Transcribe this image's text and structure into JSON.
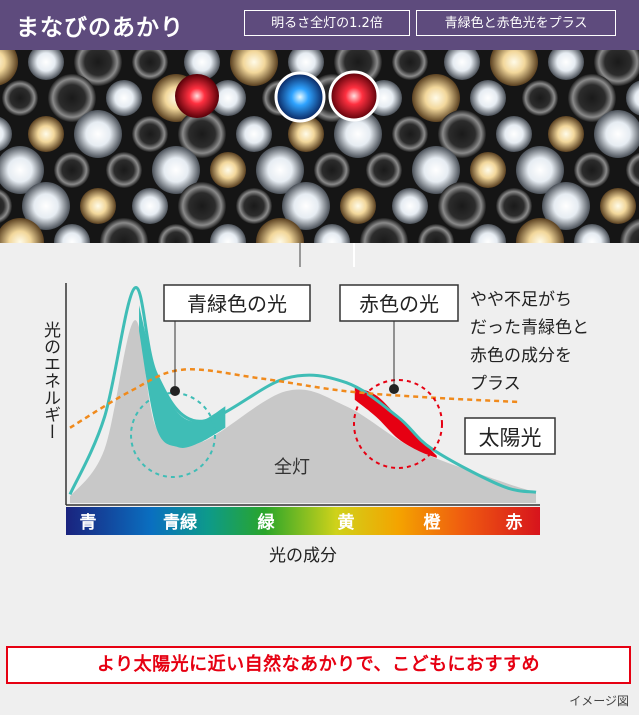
{
  "header": {
    "title": "まなびのあかり",
    "badges": [
      "明るさ全灯の1.2倍",
      "青緑色と赤色光をプラス"
    ]
  },
  "callouts": {
    "blue_green": "青緑色の光",
    "red": "赤色の光",
    "note_lines": [
      "やや不足がち",
      "だった青緑色と",
      "赤色の成分を",
      "プラス"
    ],
    "sunlight": "太陽光",
    "zentou": "全灯"
  },
  "colors": {
    "header_bg": "#5e4b7d",
    "teal": "#3fbdb6",
    "red": "#e60012",
    "orange_dash": "#f08a1c",
    "gray_fill": "#c8c8c8"
  },
  "chart_data": {
    "type": "area",
    "ylabel": "光のエネルギー",
    "xlabel": "光の成分",
    "categories": [
      "青",
      "青緑",
      "緑",
      "黄",
      "橙",
      "赤"
    ],
    "series": [
      {
        "name": "全灯",
        "style": "filled-gray",
        "points": [
          [
            0,
            3
          ],
          [
            0.4,
            25
          ],
          [
            0.75,
            85
          ],
          [
            1,
            35
          ],
          [
            1.5,
            28
          ],
          [
            2.5,
            52
          ],
          [
            3.2,
            45
          ],
          [
            4,
            25
          ],
          [
            5,
            10
          ],
          [
            5.4,
            5
          ]
        ]
      },
      {
        "name": "",
        "style": "teal-line",
        "points": [
          [
            0,
            4
          ],
          [
            0.4,
            40
          ],
          [
            0.75,
            100
          ],
          [
            1,
            60
          ],
          [
            1.5,
            38
          ],
          [
            2.5,
            58
          ],
          [
            3.2,
            56
          ],
          [
            3.8,
            40
          ],
          [
            4.2,
            25
          ],
          [
            5,
            8
          ],
          [
            5.4,
            5
          ]
        ]
      },
      {
        "name": "太陽光",
        "style": "orange-dashed",
        "points": [
          [
            0,
            35
          ],
          [
            0.7,
            52
          ],
          [
            1.3,
            62
          ],
          [
            2.2,
            58
          ],
          [
            3.2,
            52
          ],
          [
            4.2,
            49
          ],
          [
            5.2,
            47
          ]
        ]
      }
    ]
  },
  "footer": {
    "slogan": "より太陽光に近い自然なあかりで、こどもにおすすめ",
    "caption": "イメージ図"
  }
}
